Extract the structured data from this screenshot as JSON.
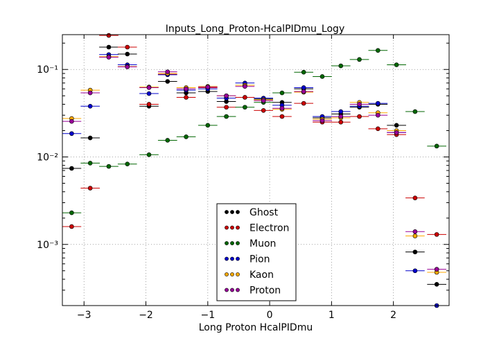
{
  "chart_data": {
    "type": "scatter",
    "title": "Inputs_Long_Proton-HcalPIDmu_Logy",
    "xlabel": "Long Proton HcalPIDmu",
    "ylabel": "",
    "xlim": [
      -3.35,
      2.9
    ],
    "ylim": [
      0.0002,
      0.25
    ],
    "yscale": "log",
    "grid": true,
    "x_ticks": [
      -3,
      -2,
      -1,
      0,
      1,
      2
    ],
    "x_tick_labels": [
      "−3",
      "−2",
      "−1",
      "0",
      "1",
      "2"
    ],
    "y_ticks": [
      0.001,
      0.01,
      0.1
    ],
    "y_tick_labels": [
      "10⁻³",
      "10⁻²",
      "10⁻¹"
    ],
    "legend_position": "lower-center",
    "bin_half_width": 0.155,
    "series": [
      {
        "name": "Ghost",
        "color": "#000000",
        "points": [
          [
            -3.2,
            0.0074
          ],
          [
            -2.9,
            0.0165
          ],
          [
            -2.6,
            0.18
          ],
          [
            -2.3,
            0.15
          ],
          [
            -1.95,
            0.038
          ],
          [
            -1.65,
            0.073
          ],
          [
            -1.35,
            0.054
          ],
          [
            -1.0,
            0.056
          ],
          [
            -0.7,
            0.043
          ],
          [
            -0.4,
            0.066
          ],
          [
            -0.1,
            0.046
          ],
          [
            0.2,
            0.042
          ],
          [
            0.55,
            0.06
          ],
          [
            0.85,
            0.028
          ],
          [
            1.15,
            0.031
          ],
          [
            1.45,
            0.037
          ],
          [
            1.75,
            0.04
          ],
          [
            2.05,
            0.023
          ],
          [
            2.35,
            0.00082
          ],
          [
            2.7,
            0.00035
          ]
        ]
      },
      {
        "name": "Electron",
        "color": "#cc0000",
        "points": [
          [
            -3.2,
            0.0016
          ],
          [
            -2.9,
            0.0044
          ],
          [
            -2.6,
            0.245
          ],
          [
            -2.3,
            0.18
          ],
          [
            -1.95,
            0.04
          ],
          [
            -1.65,
            0.088
          ],
          [
            -1.35,
            0.048
          ],
          [
            -1.0,
            0.062
          ],
          [
            -0.7,
            0.037
          ],
          [
            -0.4,
            0.048
          ],
          [
            -0.1,
            0.034
          ],
          [
            0.2,
            0.029
          ],
          [
            0.55,
            0.041
          ],
          [
            0.85,
            0.025
          ],
          [
            1.15,
            0.025
          ],
          [
            1.45,
            0.029
          ],
          [
            1.75,
            0.021
          ],
          [
            2.05,
            0.018
          ],
          [
            2.35,
            0.0034
          ],
          [
            2.7,
            0.0013
          ]
        ]
      },
      {
        "name": "Muon",
        "color": "#006600",
        "points": [
          [
            -3.2,
            0.0023
          ],
          [
            -2.9,
            0.0085
          ],
          [
            -2.6,
            0.0078
          ],
          [
            -2.3,
            0.0083
          ],
          [
            -1.95,
            0.0106
          ],
          [
            -1.65,
            0.0155
          ],
          [
            -1.35,
            0.017
          ],
          [
            -1.0,
            0.023
          ],
          [
            -0.7,
            0.029
          ],
          [
            -0.4,
            0.037
          ],
          [
            -0.1,
            0.042
          ],
          [
            0.2,
            0.054
          ],
          [
            0.55,
            0.093
          ],
          [
            0.85,
            0.083
          ],
          [
            1.15,
            0.11
          ],
          [
            1.45,
            0.13
          ],
          [
            1.75,
            0.165
          ],
          [
            2.05,
            0.113
          ],
          [
            2.35,
            0.033
          ],
          [
            2.7,
            0.0133
          ]
        ]
      },
      {
        "name": "Pion",
        "color": "#0000cc",
        "points": [
          [
            -3.2,
            0.0185
          ],
          [
            -2.9,
            0.038
          ],
          [
            -2.6,
            0.148
          ],
          [
            -2.3,
            0.113
          ],
          [
            -1.95,
            0.053
          ],
          [
            -1.65,
            0.087
          ],
          [
            -1.35,
            0.058
          ],
          [
            -1.0,
            0.06
          ],
          [
            -0.7,
            0.047
          ],
          [
            -0.4,
            0.07
          ],
          [
            -0.1,
            0.047
          ],
          [
            0.2,
            0.039
          ],
          [
            0.55,
            0.062
          ],
          [
            0.85,
            0.029
          ],
          [
            1.15,
            0.033
          ],
          [
            1.45,
            0.038
          ],
          [
            1.75,
            0.041
          ],
          [
            2.05,
            0.019
          ],
          [
            2.35,
            0.0005
          ],
          [
            2.7,
            0.0002
          ]
        ]
      },
      {
        "name": "Kaon",
        "color": "#ffaa00",
        "points": [
          [
            -3.2,
            0.0275
          ],
          [
            -2.9,
            0.058
          ],
          [
            -2.6,
            0.14
          ],
          [
            -2.3,
            0.108
          ],
          [
            -1.95,
            0.063
          ],
          [
            -1.65,
            0.09
          ],
          [
            -1.35,
            0.062
          ],
          [
            -1.0,
            0.064
          ],
          [
            -0.7,
            0.05
          ],
          [
            -0.4,
            0.066
          ],
          [
            -0.1,
            0.045
          ],
          [
            0.2,
            0.035
          ],
          [
            0.55,
            0.055
          ],
          [
            0.85,
            0.027
          ],
          [
            1.15,
            0.028
          ],
          [
            1.45,
            0.042
          ],
          [
            1.75,
            0.032
          ],
          [
            2.05,
            0.02
          ],
          [
            2.35,
            0.00125
          ],
          [
            2.7,
            0.00048
          ]
        ]
      },
      {
        "name": "Proton",
        "color": "#990099",
        "points": [
          [
            -3.2,
            0.0255
          ],
          [
            -2.9,
            0.054
          ],
          [
            -2.6,
            0.138
          ],
          [
            -2.3,
            0.107
          ],
          [
            -1.95,
            0.062
          ],
          [
            -1.65,
            0.094
          ],
          [
            -1.35,
            0.06
          ],
          [
            -1.0,
            0.063
          ],
          [
            -0.7,
            0.05
          ],
          [
            -0.4,
            0.064
          ],
          [
            -0.1,
            0.044
          ],
          [
            0.2,
            0.036
          ],
          [
            0.55,
            0.056
          ],
          [
            0.85,
            0.026
          ],
          [
            1.15,
            0.029
          ],
          [
            1.45,
            0.04
          ],
          [
            1.75,
            0.03
          ],
          [
            2.05,
            0.019
          ],
          [
            2.35,
            0.0014
          ],
          [
            2.7,
            0.00052
          ]
        ]
      }
    ]
  }
}
